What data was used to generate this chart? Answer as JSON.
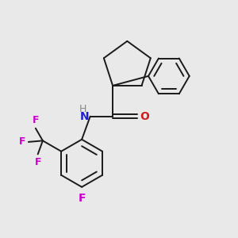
{
  "bg_color": "#e9e9e9",
  "bond_color": "#1a1a1a",
  "N_color": "#2020cc",
  "O_color": "#cc2020",
  "F_color": "#cc00cc",
  "H_color": "#888888",
  "line_width": 1.4,
  "figsize": [
    3.0,
    3.0
  ],
  "dpi": 100,
  "xlim": [
    0.0,
    5.0
  ],
  "ylim": [
    -0.5,
    5.2
  ]
}
